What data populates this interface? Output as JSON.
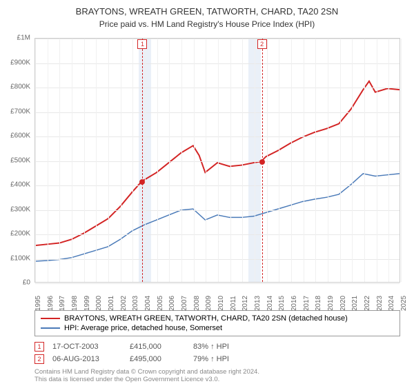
{
  "title": "BRAYTONS, WREATH GREEN, TATWORTH, CHARD, TA20 2SN",
  "subtitle": "Price paid vs. HM Land Registry's House Price Index (HPI)",
  "chart": {
    "type": "line",
    "background_color": "#ffffff",
    "grid_color": "#e8e8e8",
    "border_color": "#cccccc",
    "xlim": [
      1995,
      2025
    ],
    "ylim": [
      0,
      1000000
    ],
    "ytick_step": 100000,
    "y_ticks": [
      "£0",
      "£100K",
      "£200K",
      "£300K",
      "£400K",
      "£500K",
      "£600K",
      "£700K",
      "£800K",
      "£900K",
      "£1M"
    ],
    "x_ticks": [
      1995,
      1996,
      1997,
      1998,
      1999,
      2000,
      2001,
      2002,
      2003,
      2004,
      2005,
      2006,
      2007,
      2008,
      2009,
      2010,
      2011,
      2012,
      2013,
      2014,
      2015,
      2016,
      2017,
      2018,
      2019,
      2020,
      2021,
      2022,
      2023,
      2024,
      2025
    ],
    "label_fontsize": 10,
    "title_fontsize": 13,
    "shaded_bands": [
      {
        "start": 2003.5,
        "end": 2004.5,
        "color": "#eaf0f8"
      },
      {
        "start": 2012.5,
        "end": 2013.5,
        "color": "#eaf0f8"
      }
    ],
    "series": [
      {
        "name": "property",
        "label": "BRAYTONS, WREATH GREEN, TATWORTH, CHARD, TA20 2SN (detached house)",
        "color": "#d32424",
        "line_width": 2,
        "data": [
          [
            1995,
            150000
          ],
          [
            1996,
            155000
          ],
          [
            1997,
            160000
          ],
          [
            1998,
            175000
          ],
          [
            1999,
            200000
          ],
          [
            2000,
            230000
          ],
          [
            2001,
            260000
          ],
          [
            2002,
            310000
          ],
          [
            2003,
            370000
          ],
          [
            2003.8,
            415000
          ],
          [
            2004,
            420000
          ],
          [
            2005,
            450000
          ],
          [
            2006,
            490000
          ],
          [
            2007,
            530000
          ],
          [
            2008,
            560000
          ],
          [
            2008.5,
            520000
          ],
          [
            2009,
            450000
          ],
          [
            2010,
            490000
          ],
          [
            2011,
            475000
          ],
          [
            2012,
            480000
          ],
          [
            2013,
            490000
          ],
          [
            2013.6,
            495000
          ],
          [
            2014,
            515000
          ],
          [
            2015,
            540000
          ],
          [
            2016,
            570000
          ],
          [
            2017,
            595000
          ],
          [
            2018,
            615000
          ],
          [
            2019,
            630000
          ],
          [
            2020,
            650000
          ],
          [
            2021,
            710000
          ],
          [
            2022,
            790000
          ],
          [
            2022.5,
            825000
          ],
          [
            2023,
            780000
          ],
          [
            2024,
            795000
          ],
          [
            2025,
            790000
          ]
        ]
      },
      {
        "name": "hpi",
        "label": "HPI: Average price, detached house, Somerset",
        "color": "#4a7ab8",
        "line_width": 1.5,
        "data": [
          [
            1995,
            85000
          ],
          [
            1996,
            88000
          ],
          [
            1997,
            92000
          ],
          [
            1998,
            100000
          ],
          [
            1999,
            115000
          ],
          [
            2000,
            130000
          ],
          [
            2001,
            145000
          ],
          [
            2002,
            175000
          ],
          [
            2003,
            210000
          ],
          [
            2004,
            235000
          ],
          [
            2005,
            255000
          ],
          [
            2006,
            275000
          ],
          [
            2007,
            295000
          ],
          [
            2008,
            300000
          ],
          [
            2009,
            255000
          ],
          [
            2010,
            275000
          ],
          [
            2011,
            265000
          ],
          [
            2012,
            265000
          ],
          [
            2013,
            270000
          ],
          [
            2014,
            285000
          ],
          [
            2015,
            300000
          ],
          [
            2016,
            315000
          ],
          [
            2017,
            330000
          ],
          [
            2018,
            340000
          ],
          [
            2019,
            348000
          ],
          [
            2020,
            360000
          ],
          [
            2021,
            400000
          ],
          [
            2022,
            445000
          ],
          [
            2023,
            435000
          ],
          [
            2024,
            440000
          ],
          [
            2025,
            445000
          ]
        ]
      }
    ],
    "markers": [
      {
        "num": "1",
        "x": 2003.8,
        "y": 415000,
        "color": "#d32424",
        "date": "17-OCT-2003",
        "price": "£415,000",
        "pct": "83% ↑ HPI"
      },
      {
        "num": "2",
        "x": 2013.6,
        "y": 495000,
        "color": "#d32424",
        "date": "06-AUG-2013",
        "price": "£495,000",
        "pct": "79% ↑ HPI"
      }
    ]
  },
  "footer_line1": "Contains HM Land Registry data © Crown copyright and database right 2024.",
  "footer_line2": "This data is licensed under the Open Government Licence v3.0."
}
